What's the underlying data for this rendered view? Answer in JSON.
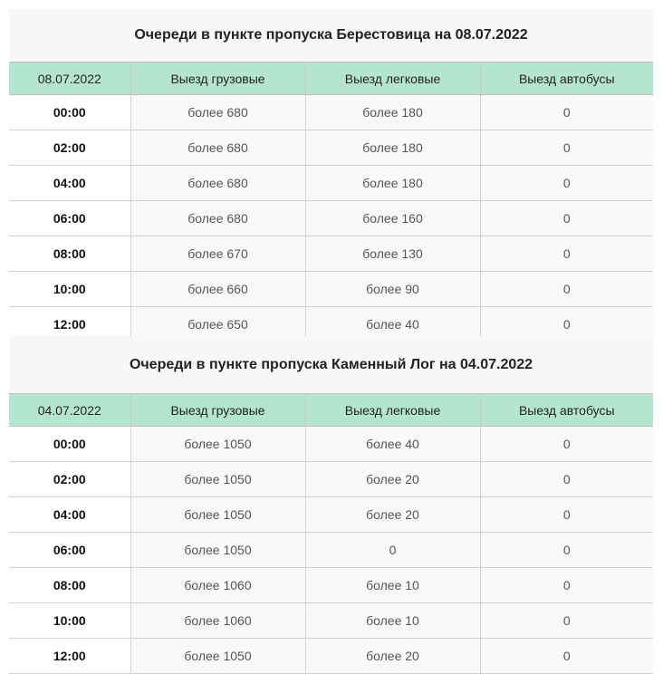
{
  "tables": [
    {
      "title": "Очереди в пункте пропуска Берестовица на 08.07.2022",
      "headers": [
        "08.07.2022",
        "Выезд грузовые",
        "Выезд легковые",
        "Выезд автобусы"
      ],
      "rows": [
        [
          "00:00",
          "более 680",
          "более 180",
          "0"
        ],
        [
          "02:00",
          "более 680",
          "более 180",
          "0"
        ],
        [
          "04:00",
          "более 680",
          "более 180",
          "0"
        ],
        [
          "06:00",
          "более 680",
          "более 160",
          "0"
        ],
        [
          "08:00",
          "более 670",
          "более 130",
          "0"
        ],
        [
          "10:00",
          "более 660",
          "более 90",
          "0"
        ],
        [
          "12:00",
          "более 650",
          "более 40",
          "0"
        ]
      ]
    },
    {
      "title": "Очереди в пункте пропуска Каменный Лог на 04.07.2022",
      "headers": [
        "04.07.2022",
        "Выезд грузовые",
        "Выезд легковые",
        "Выезд автобусы"
      ],
      "rows": [
        [
          "00:00",
          "более 1050",
          "более 40",
          "0"
        ],
        [
          "02:00",
          "более 1050",
          "более 20",
          "0"
        ],
        [
          "04:00",
          "более 1050",
          "более 20",
          "0"
        ],
        [
          "06:00",
          "более 1050",
          "0",
          "0"
        ],
        [
          "08:00",
          "более 1060",
          "более 10",
          "0"
        ],
        [
          "10:00",
          "более 1060",
          "более 10",
          "0"
        ],
        [
          "12:00",
          "более 1050",
          "более 20",
          "0"
        ]
      ]
    }
  ]
}
